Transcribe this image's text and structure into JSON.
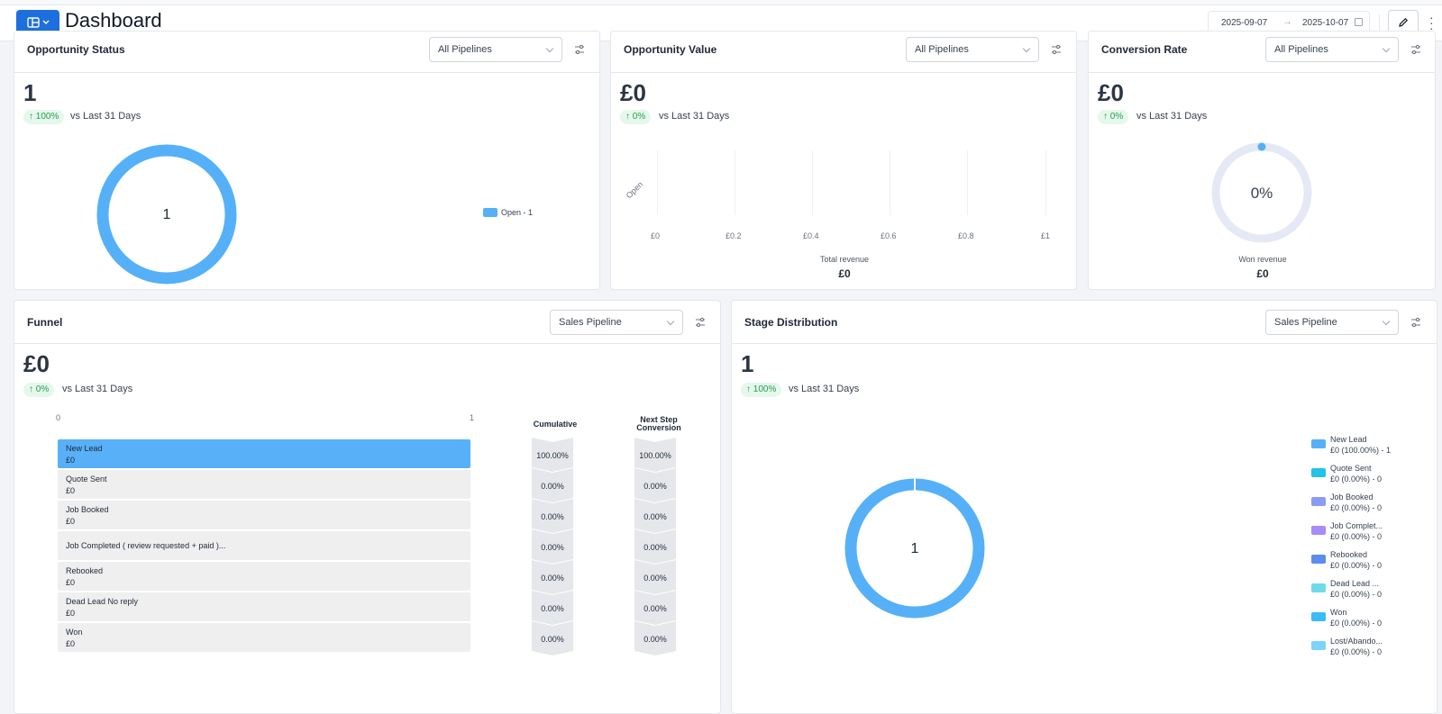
{
  "header": {
    "title": "Dashboard",
    "date_start": "2025-09-07",
    "date_end": "2025-10-07"
  },
  "opportunity_status": {
    "title": "Opportunity Status",
    "filter": "All Pipelines",
    "value": "1",
    "change": "↑ 100%",
    "vs_label": "vs Last 31 Days",
    "donut_center": "1",
    "legend": [
      {
        "label": "Open - 1",
        "color": "#55b0f8"
      }
    ]
  },
  "opportunity_value": {
    "title": "Opportunity Value",
    "filter": "All Pipelines",
    "value": "£0",
    "change": "↑ 0%",
    "vs_label": "vs Last 31 Days",
    "y_category": "Open",
    "x_ticks": [
      "£0",
      "£0.2",
      "£0.4",
      "£0.6",
      "£0.8",
      "£1"
    ],
    "footer_label": "Total revenue",
    "footer_value": "£0"
  },
  "conversion_rate": {
    "title": "Conversion Rate",
    "filter": "All Pipelines",
    "value": "£0",
    "change": "↑ 0%",
    "vs_label": "vs Last 31 Days",
    "gauge_text": "0%",
    "gauge_fraction": 0,
    "footer_label": "Won revenue",
    "footer_value": "£0"
  },
  "funnel": {
    "title": "Funnel",
    "filter": "Sales Pipeline",
    "value": "£0",
    "change": "↑ 0%",
    "vs_label": "vs Last 31 Days",
    "axis_min": "0",
    "axis_max": "1",
    "col_cumulative": "Cumulative",
    "col_next_1": "Next Step",
    "col_next_2": "Conversion",
    "rows": [
      {
        "name": "New Lead",
        "value": "£0",
        "cumulative": "100.00%",
        "next": "100.00%"
      },
      {
        "name": "Quote Sent",
        "value": "£0",
        "cumulative": "0.00%",
        "next": "0.00%"
      },
      {
        "name": "Job Booked",
        "value": "£0",
        "cumulative": "0.00%",
        "next": "0.00%"
      },
      {
        "name": "Job Completed ( review requested + paid )...",
        "value": "",
        "cumulative": "0.00%",
        "next": "0.00%"
      },
      {
        "name": "Rebooked",
        "value": "£0",
        "cumulative": "0.00%",
        "next": "0.00%"
      },
      {
        "name": "Dead Lead   No reply",
        "value": "£0",
        "cumulative": "0.00%",
        "next": "0.00%"
      },
      {
        "name": "Won",
        "value": "£0",
        "cumulative": "0.00%",
        "next": "0.00%"
      }
    ]
  },
  "stage_distribution": {
    "title": "Stage Distribution",
    "filter": "Sales Pipeline",
    "value": "1",
    "change": "↑ 100%",
    "vs_label": "vs Last 31 Days",
    "donut_center": "1",
    "legend": [
      {
        "name": "New Lead",
        "detail": "£0 (100.00%) - 1",
        "color": "#55b0f8"
      },
      {
        "name": "Quote Sent",
        "detail": "£0 (0.00%) - 0",
        "color": "#22c3e6"
      },
      {
        "name": "Job Booked",
        "detail": "£0 (0.00%) - 0",
        "color": "#8b9cf4"
      },
      {
        "name": "Job Complet...",
        "detail": "£0 (0.00%) - 0",
        "color": "#a78bfa"
      },
      {
        "name": "Rebooked",
        "detail": "£0 (0.00%) - 0",
        "color": "#5b8def"
      },
      {
        "name": "Dead Lead   ...",
        "detail": "£0 (0.00%) - 0",
        "color": "#6fdbe8"
      },
      {
        "name": "Won",
        "detail": "£0 (0.00%) - 0",
        "color": "#38bdf8"
      },
      {
        "name": "Lost/Abando...",
        "detail": "£0 (0.00%) - 0",
        "color": "#7dd3fc"
      }
    ]
  }
}
